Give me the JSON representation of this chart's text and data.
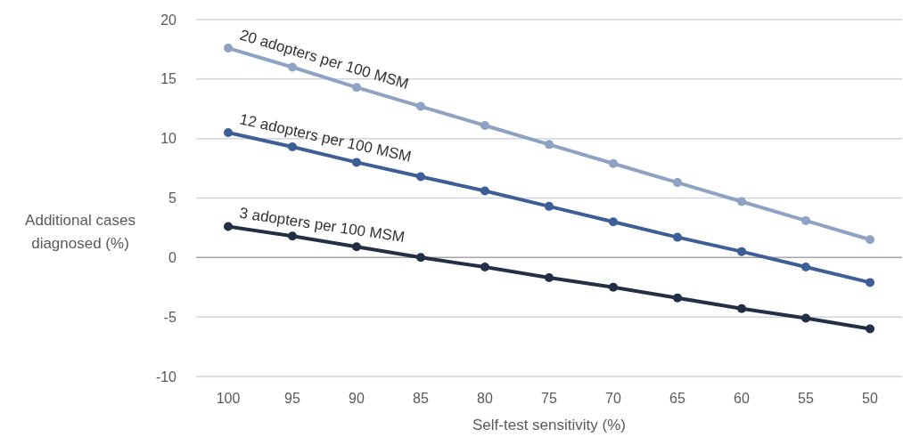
{
  "chart_data": {
    "type": "line",
    "xlabel": "Self-test sensitivity (%)",
    "ylabel": "Additional cases diagnosed (%)",
    "categories": [
      "100",
      "95",
      "90",
      "85",
      "80",
      "75",
      "70",
      "65",
      "60",
      "55",
      "50"
    ],
    "series": [
      {
        "name": "20 adopters per 100 MSM",
        "color": "#8ea3c4",
        "values": [
          17.6,
          16.0,
          14.3,
          12.7,
          11.1,
          9.5,
          7.9,
          6.3,
          4.7,
          3.1,
          1.5
        ]
      },
      {
        "name": "12 adopters per 100 MSM",
        "color": "#3d5f96",
        "values": [
          10.5,
          9.3,
          8.0,
          6.8,
          5.6,
          4.3,
          3.0,
          1.7,
          0.5,
          -0.8,
          -2.1
        ]
      },
      {
        "name": "3 adopters per 100 MSM",
        "color": "#232f45",
        "values": [
          2.6,
          1.8,
          0.9,
          0.0,
          -0.8,
          -1.7,
          -2.5,
          -3.4,
          -4.3,
          -5.1,
          -6.0
        ]
      }
    ],
    "ylim": [
      -10,
      20
    ],
    "yticks": [
      -10,
      -5,
      0,
      5,
      10,
      15,
      20
    ],
    "grid": "y",
    "marker": "circle",
    "line_style": "solid"
  }
}
